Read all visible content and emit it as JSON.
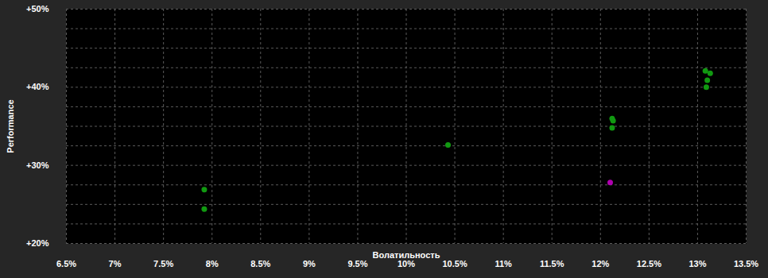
{
  "chart_data": {
    "type": "scatter",
    "x_label": "Волатильность",
    "y_label": "Performance",
    "x": [
      7.92,
      7.92,
      10.43,
      12.12,
      12.13,
      12.12,
      13.08,
      13.13,
      13.1,
      13.09,
      12.1
    ],
    "values": [
      26.9,
      24.4,
      32.6,
      36.0,
      35.7,
      34.8,
      42.1,
      41.8,
      40.9,
      40.0,
      27.8
    ],
    "colors": [
      "#119911",
      "#119911",
      "#119911",
      "#119911",
      "#119911",
      "#119911",
      "#119911",
      "#119911",
      "#119911",
      "#119911",
      "#b000b0"
    ],
    "xlim": [
      6.5,
      13.5
    ],
    "xticks": [
      {
        "value": 6.5,
        "label": "6.5%"
      },
      {
        "value": 7,
        "label": "7%"
      },
      {
        "value": 7.5,
        "label": "7.5%"
      },
      {
        "value": 8,
        "label": "8%"
      },
      {
        "value": 8.5,
        "label": "8.5%"
      },
      {
        "value": 9,
        "label": "9%"
      },
      {
        "value": 9.5,
        "label": "9.5%"
      },
      {
        "value": 10,
        "label": "10%"
      },
      {
        "value": 10.5,
        "label": "10.5%"
      },
      {
        "value": 11,
        "label": "11%"
      },
      {
        "value": 11.5,
        "label": "11.5%"
      },
      {
        "value": 12,
        "label": "12%"
      },
      {
        "value": 12.5,
        "label": "12.5%"
      },
      {
        "value": 13,
        "label": "13%"
      },
      {
        "value": 13.5,
        "label": "13.5%"
      }
    ],
    "ylim": [
      20,
      50
    ],
    "yticks": [
      {
        "value": 20,
        "label": "+20%"
      },
      {
        "value": 30,
        "label": "+30%"
      },
      {
        "value": 40,
        "label": "+40%"
      },
      {
        "value": 50,
        "label": "+50%"
      }
    ],
    "grid": true
  }
}
